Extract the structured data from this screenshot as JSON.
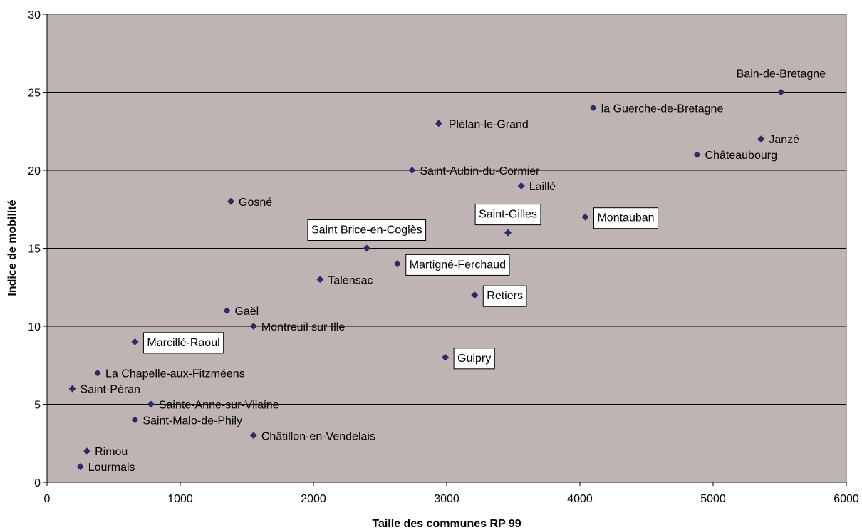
{
  "colors": {
    "plot_bg": "#bfb3b3",
    "marker": "#2b2b6b",
    "grid": "#000000",
    "label_box": "#ffffff"
  },
  "chart_data": {
    "type": "scatter",
    "xlabel": "Taille des communes RP 99",
    "ylabel": "Indice de mobilité",
    "xlim": [
      0,
      6000
    ],
    "ylim": [
      0,
      30
    ],
    "x_ticks": [
      "0",
      "1000",
      "2000",
      "3000",
      "4000",
      "5000",
      "6000"
    ],
    "y_ticks": [
      "0",
      "5",
      "10",
      "15",
      "20",
      "25",
      "30"
    ],
    "grid": "horizontal",
    "marker": "diamond",
    "points": [
      {
        "label": "Bain-de-Bretagne",
        "x": 5510,
        "y": 25,
        "boxed": false
      },
      {
        "label": "la Guerche-de-Bretagne",
        "x": 4100,
        "y": 24,
        "boxed": false
      },
      {
        "label": "Plélan-le-Grand",
        "x": 2940,
        "y": 23,
        "boxed": false
      },
      {
        "label": "Janzé",
        "x": 5360,
        "y": 22,
        "boxed": false
      },
      {
        "label": "Châteaubourg",
        "x": 4880,
        "y": 21,
        "boxed": false
      },
      {
        "label": "Saint-Aubin-du-Cormier",
        "x": 2740,
        "y": 20,
        "boxed": false
      },
      {
        "label": "Laillé",
        "x": 3560,
        "y": 19,
        "boxed": false
      },
      {
        "label": "Gosné",
        "x": 1380,
        "y": 18,
        "boxed": false
      },
      {
        "label": "Montauban",
        "x": 4040,
        "y": 17,
        "boxed": true
      },
      {
        "label": "Saint-Gilles",
        "x": 3460,
        "y": 16,
        "boxed": true
      },
      {
        "label": "Saint Brice-en-Coglès",
        "x": 2400,
        "y": 15,
        "boxed": true
      },
      {
        "label": "Martigné-Ferchaud",
        "x": 2630,
        "y": 14,
        "boxed": true
      },
      {
        "label": "Talensac",
        "x": 2050,
        "y": 13,
        "boxed": false
      },
      {
        "label": "Retiers",
        "x": 3210,
        "y": 12,
        "boxed": true
      },
      {
        "label": "Gaël",
        "x": 1350,
        "y": 11,
        "boxed": false
      },
      {
        "label": "Montreuil sur Ille",
        "x": 1550,
        "y": 10,
        "boxed": false
      },
      {
        "label": "Marcillé-Raoul",
        "x": 660,
        "y": 9,
        "boxed": true
      },
      {
        "label": "Guipry",
        "x": 2990,
        "y": 8,
        "boxed": true
      },
      {
        "label": "La Chapelle-aux-Fitzméens",
        "x": 380,
        "y": 7,
        "boxed": false
      },
      {
        "label": "Saint-Péran",
        "x": 190,
        "y": 6,
        "boxed": false
      },
      {
        "label": "Sainte-Anne-sur-Vilaine",
        "x": 780,
        "y": 5,
        "boxed": false
      },
      {
        "label": "Saint-Malo-de-Phily",
        "x": 660,
        "y": 4,
        "boxed": false
      },
      {
        "label": "Châtillon-en-Vendelais",
        "x": 1550,
        "y": 3,
        "boxed": false
      },
      {
        "label": "Rimou",
        "x": 300,
        "y": 2,
        "boxed": false
      },
      {
        "label": "Lourmais",
        "x": 250,
        "y": 1,
        "boxed": false
      }
    ]
  }
}
